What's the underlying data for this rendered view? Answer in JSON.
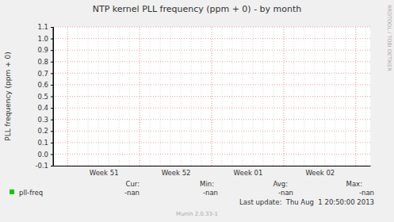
{
  "chart_data": {
    "type": "line",
    "title": "NTP kernel PLL frequency (ppm + 0) - by month",
    "y_label": "PLL frequency (ppm + 0)",
    "categories": [
      "Week 51",
      "Week 52",
      "Week 01",
      "Week 02"
    ],
    "series": [
      {
        "name": "pll-freq",
        "color": "#00cc00",
        "values": [
          null,
          null,
          null,
          null
        ],
        "stats": [
          "-nan",
          "-nan",
          "-nan",
          "-nan"
        ]
      }
    ],
    "stat_labels": [
      "Cur:",
      "Min:",
      "Avg:",
      "Max:"
    ],
    "ylim": [
      -0.1,
      1.1
    ],
    "yticks": [
      -0.1,
      {
        "value": 0,
        "label": "0.0"
      },
      0.1,
      0.2,
      0.3,
      0.4,
      0.5,
      0.6,
      0.7,
      0.8,
      0.9,
      {
        "value": 1,
        "label": "1.0"
      },
      1.1
    ],
    "grid": true,
    "legend": "bottom",
    "last_update": "Last update:  Thu Aug  1 20:50:00 2013",
    "generator": "Munin 2.0.33-1",
    "watermark": "RRDTOOL / TOBI OETIKER"
  }
}
